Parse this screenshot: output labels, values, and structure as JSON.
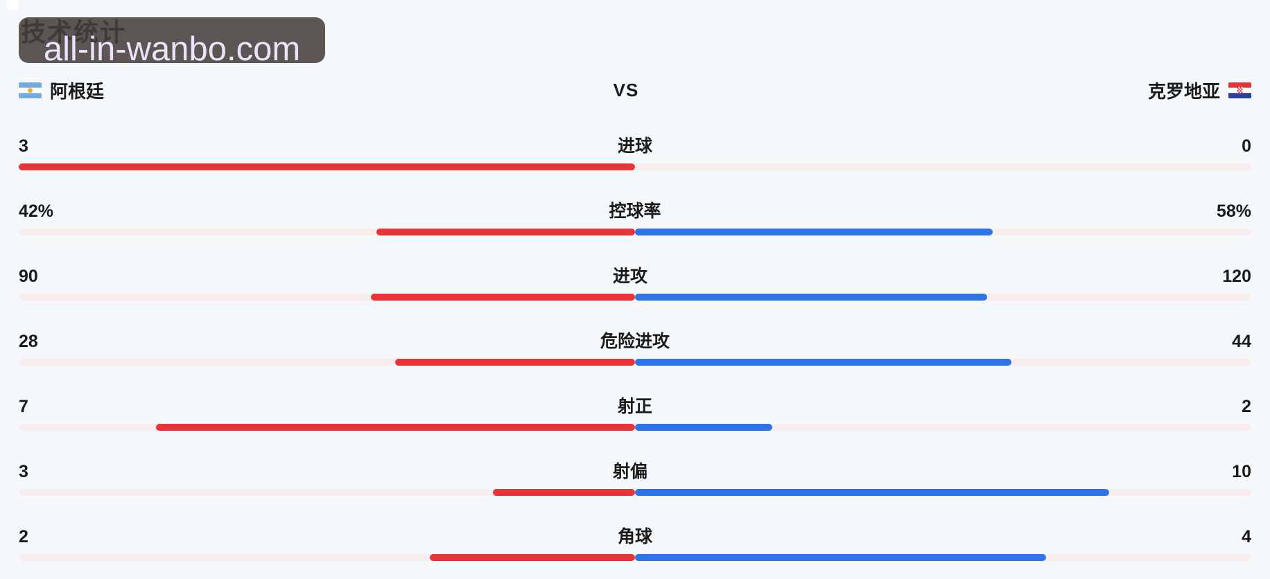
{
  "page": {
    "title": "技术统计",
    "watermark": "all-in-wanbo.com"
  },
  "header": {
    "left_team": "阿根廷",
    "right_team": "克罗地亚",
    "vs": "VS",
    "left_flag": "argentina-flag",
    "right_flag": "croatia-flag"
  },
  "colors": {
    "left_bar": "#e83438",
    "right_bar": "#2f74e6",
    "track": "#f9ecec",
    "background": "#f4f8fb",
    "watermark_bg": "#453f3c",
    "watermark_text": "#e9e4f9",
    "argentina_blue": "#74acdf",
    "argentina_sun": "#f6b40e",
    "croatia_red": "#e8333a",
    "croatia_blue": "#2b3f9e"
  },
  "chart_data": {
    "type": "bar",
    "orientation": "horizontal-diverging",
    "title": "技术统计",
    "legend_position": "top",
    "grid": false,
    "teams": [
      "阿根廷",
      "克罗地亚"
    ],
    "categories": [
      "进球",
      "控球率",
      "进攻",
      "危险进攻",
      "射正",
      "射偏",
      "角球"
    ],
    "series": [
      {
        "name": "阿根廷",
        "color": "#e83438",
        "values": [
          "3",
          "42%",
          "90",
          "28",
          "7",
          "3",
          "2"
        ]
      },
      {
        "name": "克罗地亚",
        "color": "#2f74e6",
        "values": [
          "0",
          "58%",
          "120",
          "44",
          "2",
          "10",
          "4"
        ]
      }
    ],
    "bar_rule": "each bar extends from center; length = value / (left+right) of row half-width"
  }
}
